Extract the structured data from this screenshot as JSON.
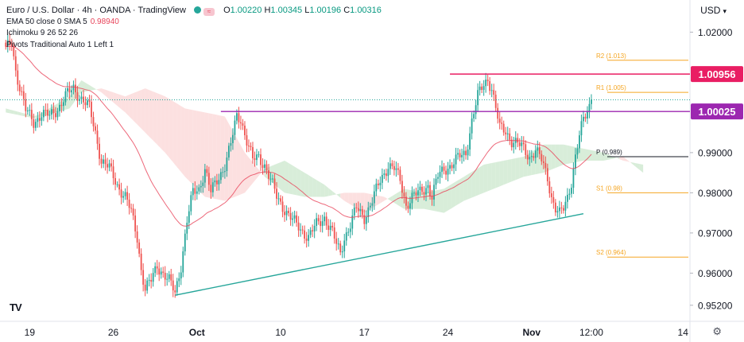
{
  "header": {
    "symbol_title": "Euro / U.S. Dollar · 4h · OANDA · TradingView",
    "ohlc": {
      "o_label": "O",
      "o": "1.00220",
      "h_label": "H",
      "h": "1.00345",
      "l_label": "L",
      "l": "1.00196",
      "c_label": "C",
      "c": "1.00316"
    },
    "indicators": [
      {
        "label": "EMA 50 close 0 SMA 5",
        "value": "0.98940"
      },
      {
        "label": "Ichimoku 9 26 52 26",
        "value": ""
      },
      {
        "label": "Pivots Traditional Auto 1 Left 1",
        "value": ""
      }
    ],
    "currency_label": "USD",
    "logo_text": "TV",
    "settings_icon": "gear-icon"
  },
  "chart_data": {
    "type": "candlestick",
    "symbol": "EURUSD",
    "timeframe": "4h",
    "ylim": [
      0.948,
      1.028
    ],
    "y_ticks": [
      {
        "label": "1.02000",
        "value": 1.02
      },
      {
        "label": "0.99000",
        "value": 0.99
      },
      {
        "label": "0.98000",
        "value": 0.98
      },
      {
        "label": "0.97000",
        "value": 0.97
      },
      {
        "label": "0.96000",
        "value": 0.96
      },
      {
        "label": "0.95200",
        "value": 0.952
      }
    ],
    "x_ticks": [
      {
        "label": "19",
        "bar": 12
      },
      {
        "label": "26",
        "bar": 54
      },
      {
        "label": "Oct",
        "bar": 96
      },
      {
        "label": "10",
        "bar": 138
      },
      {
        "label": "17",
        "bar": 180
      },
      {
        "label": "24",
        "bar": 222
      },
      {
        "label": "Nov",
        "bar": 264
      },
      {
        "label": "12:00",
        "bar": 294
      },
      {
        "label": "14",
        "bar": 340
      }
    ],
    "bars_total": 344,
    "price_tags": [
      {
        "label": "1.00956",
        "value": 1.00956,
        "color": "#e91e63"
      },
      {
        "label": "1.00025",
        "value": 1.00025,
        "color": "#9c27b0"
      }
    ],
    "pivots": [
      {
        "label": "R2 (1.013)",
        "value": 1.013
      },
      {
        "label": "R1 (1.005)",
        "value": 1.005
      },
      {
        "label": "P (0.989)",
        "value": 0.989
      },
      {
        "label": "S1 (0.98)",
        "value": 0.98
      },
      {
        "label": "S2 (0.964)",
        "value": 0.964
      }
    ],
    "resistance_lines": [
      {
        "from_bar": 223,
        "to_bar": 330,
        "value": 1.00956,
        "color": "#e91e63"
      },
      {
        "from_bar": 108,
        "to_bar": 330,
        "value": 1.00025,
        "color": "#9c27b0"
      }
    ],
    "trendline": {
      "from_bar": 85,
      "from_value": 0.9545,
      "to_bar": 290,
      "to_value": 0.9748,
      "color": "#26a69a"
    },
    "last_price": 1.00316,
    "keypoints": [
      [
        0,
        1.0155
      ],
      [
        3,
        1.0175
      ],
      [
        5,
        1.0105
      ],
      [
        10,
        1.0005
      ],
      [
        14,
        0.9975
      ],
      [
        18,
        0.9998
      ],
      [
        22,
        0.999
      ],
      [
        26,
        1.001
      ],
      [
        30,
        1.004
      ],
      [
        34,
        1.006
      ],
      [
        38,
        1.0035
      ],
      [
        42,
        1.001
      ],
      [
        45,
        0.995
      ],
      [
        48,
        0.988
      ],
      [
        52,
        0.986
      ],
      [
        56,
        0.982
      ],
      [
        60,
        0.979
      ],
      [
        63,
        0.975
      ],
      [
        66,
        0.969
      ],
      [
        68,
        0.961
      ],
      [
        70,
        0.956
      ],
      [
        73,
        0.958
      ],
      [
        76,
        0.962
      ],
      [
        79,
        0.96
      ],
      [
        82,
        0.958
      ],
      [
        85,
        0.955
      ],
      [
        88,
        0.962
      ],
      [
        91,
        0.973
      ],
      [
        94,
        0.98
      ],
      [
        97,
        0.981
      ],
      [
        100,
        0.986
      ],
      [
        103,
        0.98
      ],
      [
        106,
        0.983
      ],
      [
        110,
        0.987
      ],
      [
        113,
        0.992
      ],
      [
        116,
        0.999
      ],
      [
        118,
        0.9985
      ],
      [
        121,
        0.993
      ],
      [
        124,
        0.988
      ],
      [
        127,
        0.989
      ],
      [
        130,
        0.987
      ],
      [
        133,
        0.983
      ],
      [
        136,
        0.979
      ],
      [
        140,
        0.976
      ],
      [
        144,
        0.973
      ],
      [
        148,
        0.971
      ],
      [
        152,
        0.969
      ],
      [
        156,
        0.972
      ],
      [
        160,
        0.974
      ],
      [
        164,
        0.97
      ],
      [
        166,
        0.967
      ],
      [
        168,
        0.965
      ],
      [
        170,
        0.969
      ],
      [
        173,
        0.972
      ],
      [
        176,
        0.976
      ],
      [
        180,
        0.974
      ],
      [
        184,
        0.978
      ],
      [
        188,
        0.983
      ],
      [
        192,
        0.987
      ],
      [
        195,
        0.986
      ],
      [
        198,
        0.983
      ],
      [
        201,
        0.977
      ],
      [
        204,
        0.979
      ],
      [
        208,
        0.98
      ],
      [
        212,
        0.982
      ],
      [
        214,
        0.979
      ],
      [
        217,
        0.984
      ],
      [
        220,
        0.986
      ],
      [
        224,
        0.987
      ],
      [
        228,
        0.989
      ],
      [
        231,
        0.99
      ],
      [
        234,
        0.998
      ],
      [
        237,
        1.004
      ],
      [
        240,
        1.007
      ],
      [
        242,
        1.0085
      ],
      [
        244,
        1.006
      ],
      [
        246,
        1.001
      ],
      [
        248,
        0.996
      ],
      [
        251,
        0.9955
      ],
      [
        254,
        0.993
      ],
      [
        257,
        0.992
      ],
      [
        260,
        0.991
      ],
      [
        263,
        0.989
      ],
      [
        266,
        0.9905
      ],
      [
        269,
        0.988
      ],
      [
        272,
        0.984
      ],
      [
        274,
        0.979
      ],
      [
        276,
        0.976
      ],
      [
        278,
        0.9745
      ],
      [
        280,
        0.976
      ],
      [
        282,
        0.979
      ],
      [
        284,
        0.983
      ],
      [
        286,
        0.989
      ],
      [
        288,
        0.994
      ],
      [
        290,
        0.998
      ],
      [
        292,
        1.0005
      ],
      [
        294,
        1.0032
      ]
    ],
    "cloud_anchor_bars": [
      0,
      15,
      32,
      38,
      48,
      60,
      70,
      80,
      90,
      100,
      110,
      120,
      130,
      140,
      150,
      160,
      170,
      180,
      190,
      200,
      210,
      220,
      230,
      240,
      250,
      260,
      270,
      280,
      290,
      300,
      310,
      320
    ],
    "cloud_span_a": [
      1.001,
      0.999,
      1.004,
      1.008,
      1.005,
      1.0,
      0.995,
      0.99,
      0.984,
      0.979,
      0.978,
      0.98,
      0.986,
      0.988,
      0.985,
      0.982,
      0.978,
      0.975,
      0.978,
      0.981,
      0.98,
      0.981,
      0.984,
      0.987,
      0.988,
      0.989,
      0.992,
      0.992,
      0.991,
      0.99,
      0.988,
      0.987
    ],
    "cloud_span_b": [
      1.0,
      0.9985,
      1.001,
      1.005,
      1.006,
      1.004,
      1.006,
      1.004,
      1.001,
      1.0,
      0.999,
      0.99,
      0.984,
      0.98,
      0.979,
      0.979,
      0.98,
      0.98,
      0.979,
      0.976,
      0.976,
      0.975,
      0.978,
      0.98,
      0.982,
      0.984,
      0.985,
      0.987,
      0.988,
      0.988,
      0.989,
      0.985
    ]
  }
}
